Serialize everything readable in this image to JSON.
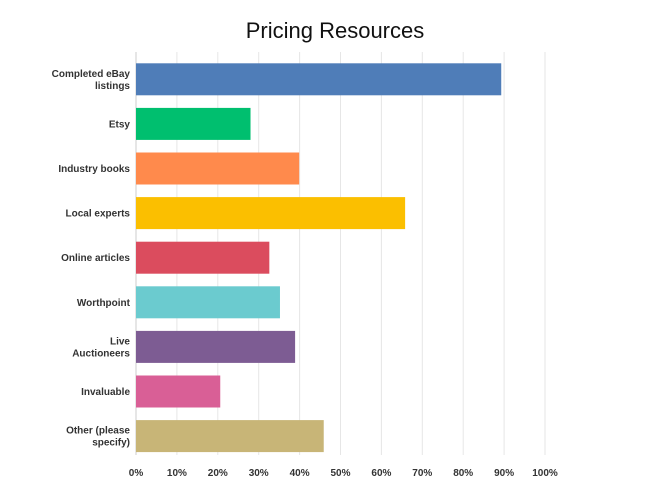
{
  "chart_data": {
    "type": "bar",
    "orientation": "horizontal",
    "title": "Pricing Resources",
    "categories": [
      "Completed eBay listings",
      "Etsy",
      "Industry books",
      "Local experts",
      "Online articles",
      "Worthpoint",
      "Live Auctioneers",
      "Invaluable",
      "Other (please specify)"
    ],
    "category_lines": [
      [
        "Completed eBay",
        "listings"
      ],
      [
        "Etsy"
      ],
      [
        "Industry books"
      ],
      [
        "Local experts"
      ],
      [
        "Online articles"
      ],
      [
        "Worthpoint"
      ],
      [
        "Live",
        "Auctioneers"
      ],
      [
        "Invaluable"
      ],
      [
        "Other (please",
        "specify)"
      ]
    ],
    "values": [
      89.3,
      28.0,
      39.9,
      65.8,
      32.6,
      35.2,
      38.9,
      20.6,
      45.9
    ],
    "unit": "%",
    "colors": [
      "#4F7DB8",
      "#00BF6F",
      "#FF8A4C",
      "#FBBF00",
      "#DB4C5E",
      "#6BCBCF",
      "#7D5C93",
      "#D95F96",
      "#C8B577"
    ],
    "xlim": [
      0,
      100
    ],
    "xticks": [
      0,
      10,
      20,
      30,
      40,
      50,
      60,
      70,
      80,
      90,
      100
    ],
    "xtick_labels": [
      "0%",
      "10%",
      "20%",
      "30%",
      "40%",
      "50%",
      "60%",
      "70%",
      "80%",
      "90%",
      "100%"
    ],
    "grid": true,
    "legend": "none"
  }
}
